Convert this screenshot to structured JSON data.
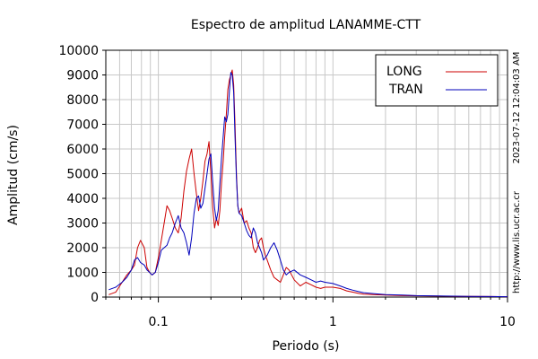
{
  "chart_data": {
    "type": "line",
    "title": "Espectro de amplitud LANAMME-CTT",
    "xlabel": "Periodo (s)",
    "ylabel": "Amplitud (cm/s)",
    "x_scale": "log",
    "xlim": [
      0.05,
      10
    ],
    "ylim": [
      0,
      10000
    ],
    "x_ticks": [
      0.1,
      1,
      10
    ],
    "x_tick_labels": [
      "0.1",
      "1",
      "10"
    ],
    "y_ticks": [
      0,
      1000,
      2000,
      3000,
      4000,
      5000,
      6000,
      7000,
      8000,
      9000,
      10000
    ],
    "y_tick_labels": [
      "0",
      "1000",
      "2000",
      "3000",
      "4000",
      "5000",
      "6000",
      "7000",
      "8000",
      "9000",
      "10000"
    ],
    "grid": true,
    "legend_position": "top-right",
    "side_labels": [
      "2023-07-12 12:04:03 AM",
      "http://www.lis.ucr.ac.cr"
    ],
    "colors": {
      "LONG": "#cc0000",
      "TRAN": "#0000bb"
    },
    "series": [
      {
        "name": "LONG",
        "x": [
          0.052,
          0.057,
          0.062,
          0.066,
          0.07,
          0.073,
          0.076,
          0.079,
          0.083,
          0.086,
          0.089,
          0.092,
          0.096,
          0.1,
          0.104,
          0.108,
          0.112,
          0.116,
          0.12,
          0.125,
          0.13,
          0.135,
          0.14,
          0.145,
          0.15,
          0.155,
          0.16,
          0.165,
          0.17,
          0.175,
          0.18,
          0.185,
          0.19,
          0.195,
          0.2,
          0.205,
          0.21,
          0.215,
          0.22,
          0.225,
          0.23,
          0.235,
          0.24,
          0.245,
          0.25,
          0.255,
          0.26,
          0.265,
          0.27,
          0.275,
          0.28,
          0.285,
          0.29,
          0.3,
          0.31,
          0.32,
          0.33,
          0.34,
          0.35,
          0.36,
          0.37,
          0.38,
          0.39,
          0.4,
          0.41,
          0.42,
          0.44,
          0.46,
          0.48,
          0.5,
          0.52,
          0.54,
          0.56,
          0.6,
          0.65,
          0.7,
          0.75,
          0.8,
          0.85,
          0.9,
          1.0,
          1.1,
          1.2,
          1.3,
          1.4,
          1.5,
          1.7,
          2.0,
          2.5,
          3.0,
          4.0,
          5.0,
          6.0,
          8.0,
          10.0
        ],
        "y": [
          100,
          200,
          600,
          900,
          1100,
          1300,
          2000,
          2300,
          2000,
          1200,
          1000,
          900,
          1000,
          1600,
          2300,
          3000,
          3700,
          3500,
          3200,
          2800,
          2600,
          3200,
          4300,
          5100,
          5600,
          6000,
          5000,
          4200,
          3500,
          4000,
          4700,
          5500,
          5800,
          6300,
          5000,
          3600,
          2800,
          3200,
          2900,
          3500,
          4600,
          5500,
          6500,
          7400,
          8400,
          8800,
          9000,
          9200,
          8600,
          7000,
          5000,
          3700,
          3400,
          3600,
          3000,
          3100,
          2800,
          2600,
          2000,
          1800,
          2000,
          2300,
          2400,
          2000,
          1700,
          1500,
          1100,
          800,
          700,
          600,
          900,
          1200,
          1100,
          700,
          450,
          600,
          500,
          400,
          350,
          400,
          400,
          350,
          250,
          200,
          150,
          120,
          100,
          80,
          60,
          50,
          40,
          30,
          25,
          20,
          15
        ]
      },
      {
        "name": "TRAN",
        "x": [
          0.052,
          0.057,
          0.062,
          0.066,
          0.07,
          0.073,
          0.076,
          0.079,
          0.083,
          0.086,
          0.089,
          0.092,
          0.096,
          0.1,
          0.104,
          0.108,
          0.112,
          0.116,
          0.12,
          0.125,
          0.13,
          0.135,
          0.14,
          0.145,
          0.15,
          0.155,
          0.16,
          0.165,
          0.17,
          0.175,
          0.18,
          0.185,
          0.19,
          0.195,
          0.2,
          0.205,
          0.21,
          0.215,
          0.22,
          0.225,
          0.23,
          0.235,
          0.24,
          0.245,
          0.25,
          0.255,
          0.26,
          0.265,
          0.27,
          0.275,
          0.28,
          0.285,
          0.29,
          0.3,
          0.31,
          0.32,
          0.33,
          0.34,
          0.35,
          0.36,
          0.37,
          0.38,
          0.39,
          0.4,
          0.41,
          0.42,
          0.44,
          0.46,
          0.48,
          0.5,
          0.52,
          0.54,
          0.56,
          0.6,
          0.65,
          0.7,
          0.75,
          0.8,
          0.85,
          0.9,
          1.0,
          1.1,
          1.2,
          1.3,
          1.4,
          1.5,
          1.7,
          2.0,
          2.5,
          3.0,
          4.0,
          5.0,
          6.0,
          8.0,
          10.0
        ],
        "y": [
          300,
          400,
          600,
          800,
          1100,
          1500,
          1600,
          1400,
          1300,
          1100,
          1000,
          900,
          1000,
          1400,
          1900,
          2000,
          2100,
          2400,
          2600,
          3000,
          3300,
          2800,
          2600,
          2200,
          1700,
          2400,
          3400,
          4000,
          4100,
          3600,
          3800,
          4400,
          5000,
          5600,
          5800,
          4600,
          3600,
          3100,
          3500,
          4600,
          5600,
          6500,
          7300,
          7100,
          7400,
          8300,
          9100,
          9000,
          8300,
          6500,
          4800,
          3700,
          3400,
          3300,
          3000,
          2700,
          2500,
          2400,
          2800,
          2600,
          2200,
          2000,
          1800,
          1500,
          1600,
          1700,
          2000,
          2200,
          1900,
          1500,
          1100,
          900,
          1000,
          1100,
          900,
          800,
          700,
          600,
          650,
          600,
          550,
          450,
          350,
          280,
          220,
          180,
          140,
          100,
          80,
          60,
          45,
          35,
          25,
          20,
          15
        ]
      }
    ]
  }
}
